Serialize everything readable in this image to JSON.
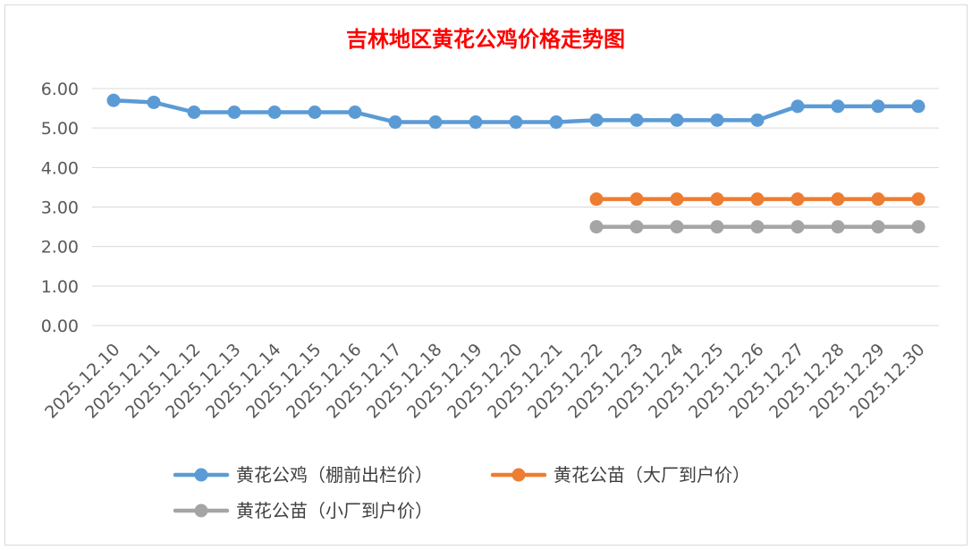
{
  "chart_data": {
    "type": "line",
    "title": "吉林地区黄花公鸡价格走势图",
    "xlabel": "",
    "ylabel": "",
    "ylim": [
      0,
      6
    ],
    "yticks": [
      "0.00",
      "1.00",
      "2.00",
      "3.00",
      "4.00",
      "5.00",
      "6.00"
    ],
    "categories": [
      "2025.12.10",
      "2025.12.11",
      "2025.12.12",
      "2025.12.13",
      "2025.12.14",
      "2025.12.15",
      "2025.12.16",
      "2025.12.17",
      "2025.12.18",
      "2025.12.19",
      "2025.12.20",
      "2025.12.21",
      "2025.12.22",
      "2025.12.23",
      "2025.12.24",
      "2025.12.25",
      "2025.12.26",
      "2025.12.27",
      "2025.12.28",
      "2025.12.29",
      "2025.12.30"
    ],
    "grid": true,
    "legend_position": "bottom",
    "series": [
      {
        "name": "黄花公鸡（棚前出栏价）",
        "color": "#5b9bd5",
        "values": [
          5.7,
          5.65,
          5.4,
          5.4,
          5.4,
          5.4,
          5.4,
          5.15,
          5.15,
          5.15,
          5.15,
          5.15,
          5.2,
          5.2,
          5.2,
          5.2,
          5.2,
          5.55,
          5.55,
          5.55,
          5.55
        ]
      },
      {
        "name": "黄花公苗（大厂到户价）",
        "color": "#ed7d31",
        "values": [
          null,
          null,
          null,
          null,
          null,
          null,
          null,
          null,
          null,
          null,
          null,
          null,
          3.2,
          3.2,
          3.2,
          3.2,
          3.2,
          3.2,
          3.2,
          3.2,
          3.2
        ]
      },
      {
        "name": "黄花公苗（小厂到户价）",
        "color": "#a5a5a5",
        "values": [
          null,
          null,
          null,
          null,
          null,
          null,
          null,
          null,
          null,
          null,
          null,
          null,
          2.5,
          2.5,
          2.5,
          2.5,
          2.5,
          2.5,
          2.5,
          2.5,
          2.5
        ]
      }
    ]
  }
}
